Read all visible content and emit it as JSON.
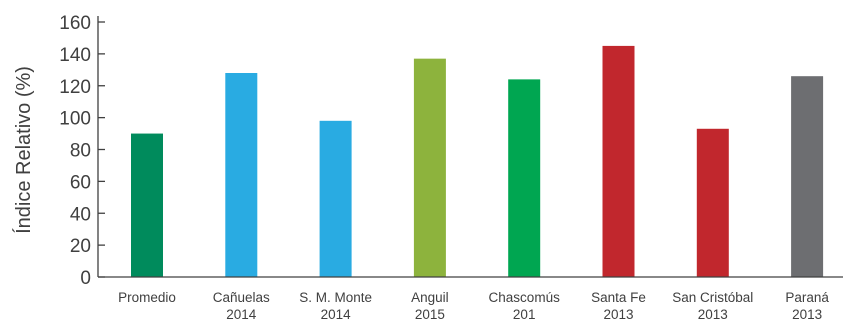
{
  "chart_data": {
    "type": "bar",
    "title": "",
    "xlabel": "",
    "ylabel": "Índice Relativo (%)",
    "ylim": [
      0,
      160
    ],
    "yticks": [
      0,
      20,
      40,
      60,
      80,
      100,
      120,
      140,
      160
    ],
    "grid": false,
    "legend": "none",
    "categories": [
      [
        "Promedio"
      ],
      [
        "Cañuelas",
        "2014"
      ],
      [
        "S. M. Monte",
        "2014"
      ],
      [
        "Anguil",
        "2015"
      ],
      [
        "Chascomús",
        "201"
      ],
      [
        "Santa Fe",
        "2013"
      ],
      [
        "San Cristóbal",
        "2013"
      ],
      [
        "Paraná",
        "2013"
      ]
    ],
    "values": [
      90,
      128,
      98,
      137,
      124,
      145,
      93,
      126
    ],
    "colors": [
      "#008b5c",
      "#29abe2",
      "#29abe2",
      "#8db33d",
      "#00a651",
      "#c1272d",
      "#c1272d",
      "#6d6e71"
    ],
    "axis_color": "#404040"
  }
}
